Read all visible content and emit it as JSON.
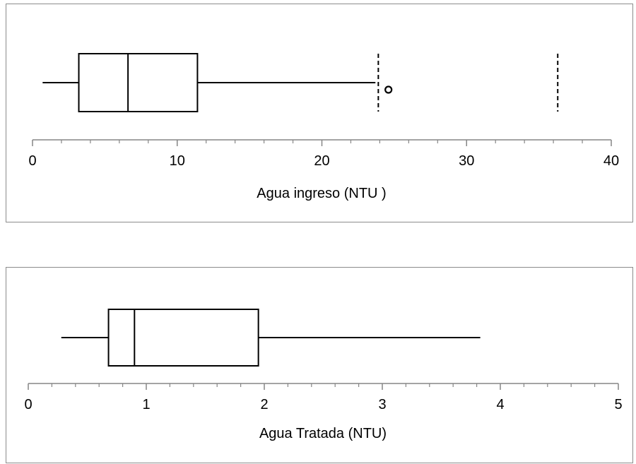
{
  "chart_data": [
    {
      "type": "boxplot",
      "xlabel": "Agua ingreso (NTU )",
      "xlim": [
        0,
        40
      ],
      "major_ticks": [
        0,
        10,
        20,
        30,
        40
      ],
      "tick_labels": [
        "0",
        "10",
        "20",
        "30",
        "40"
      ],
      "minor_tick_step": 2,
      "stats": {
        "whisker_low": 0.7,
        "q1": 3.2,
        "median": 6.6,
        "q3": 11.4,
        "whisker_high": 23.7
      },
      "outliers": [
        24.6
      ],
      "reference_lines": [
        23.9,
        36.3
      ]
    },
    {
      "type": "boxplot",
      "xlabel": "Agua Tratada (NTU)",
      "xlim": [
        0,
        5
      ],
      "major_ticks": [
        0,
        1,
        2,
        3,
        4,
        5
      ],
      "tick_labels": [
        "0",
        "1",
        "2",
        "3",
        "4",
        "5"
      ],
      "minor_tick_step": 0.2,
      "stats": {
        "whisker_low": 0.28,
        "q1": 0.68,
        "median": 0.9,
        "q3": 1.95,
        "whisker_high": 3.83
      },
      "outliers": [],
      "reference_lines": []
    }
  ]
}
